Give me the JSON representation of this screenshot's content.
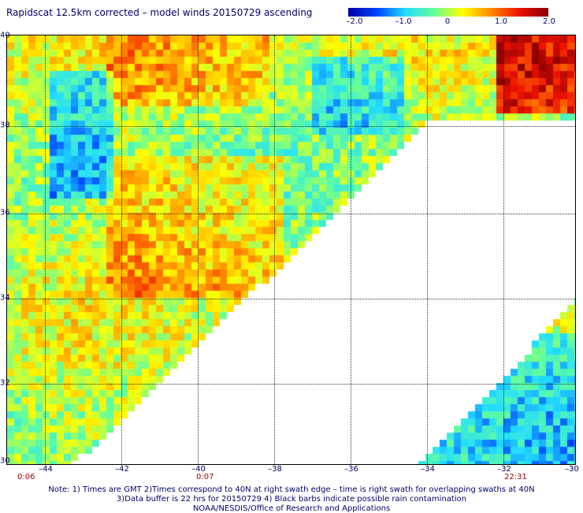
{
  "title": "Rapidscat 12.5km corrected – model winds 20150729 ascending",
  "colorbar": {
    "ticks": [
      "–2.0",
      "–1.0",
      "0",
      "1.0",
      "2.0"
    ],
    "range": [
      -2.0,
      2.0
    ],
    "stops": [
      "#0000aa",
      "#0044ff",
      "#22ddff",
      "#66ff99",
      "#ffff00",
      "#ff8800",
      "#ee1100",
      "#880000"
    ]
  },
  "map": {
    "lat_labels": [
      "40",
      "38",
      "36",
      "34",
      "32",
      "30"
    ],
    "lon_labels": [
      "–44",
      "–42",
      "–40",
      "–38",
      "–36",
      "–34",
      "–32",
      "–30"
    ],
    "lat_range": [
      30,
      40
    ],
    "lon_range": [
      -44.5,
      -30
    ],
    "swath_times": [
      "0:06",
      "0:07",
      "22:31"
    ],
    "grid": "dotted"
  },
  "notes": [
    "Note: 1) Times are GMT 2)Times correspond to 40N at right swath edge – time is right swath for overlapping swaths at 40N",
    "3)Data buffer is 22 hrs for 20150729 4) Black barbs indicate possible rain contamination",
    "NOAA/NESDIS/Office of Research and Applications"
  ]
}
